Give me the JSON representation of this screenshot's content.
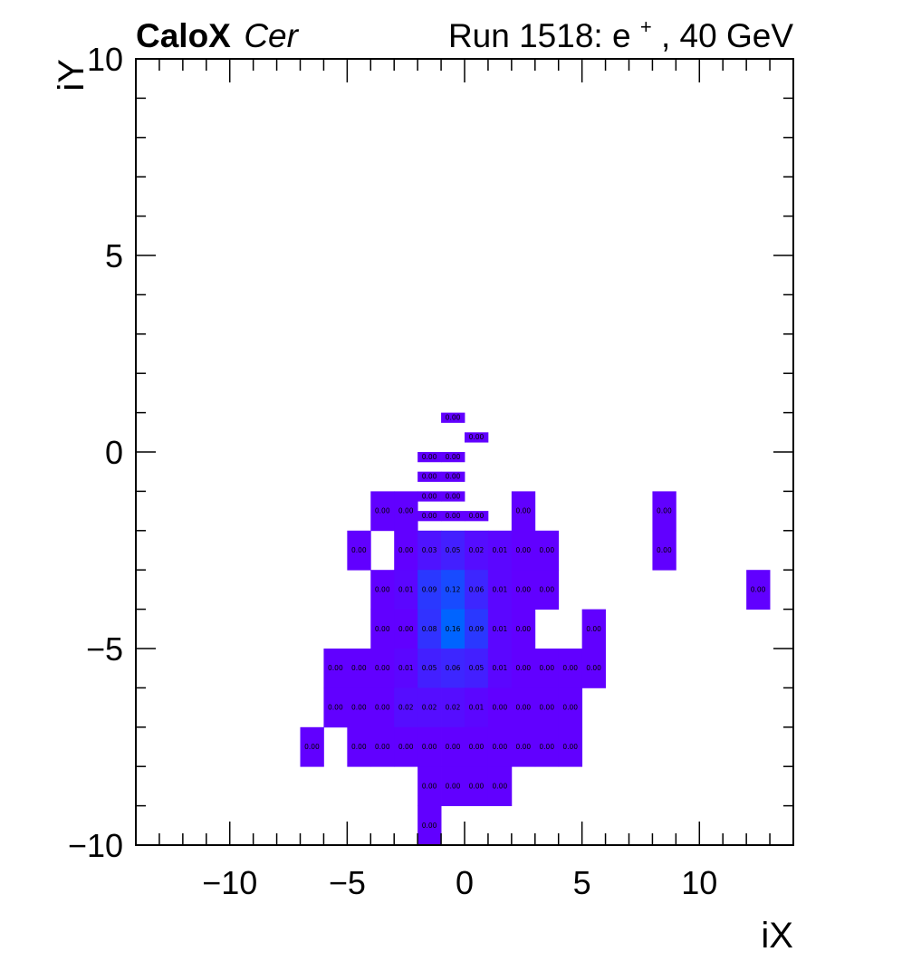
{
  "header": {
    "experiment": "CaloX",
    "channel": "Cer",
    "run_text_pre": "Run 1518: e",
    "run_sup": "+",
    "run_text_post": ", 40 GeV"
  },
  "chart_data": {
    "type": "heatmap",
    "xlabel": "iX",
    "ylabel": "iY",
    "xlim": [
      -14,
      14
    ],
    "ylim": [
      -10,
      10
    ],
    "x_ticks": [
      -10,
      -5,
      0,
      5,
      10
    ],
    "y_ticks": [
      -10,
      -5,
      0,
      5,
      10
    ],
    "x_tick_labels": [
      "−10",
      "−5",
      "0",
      "5",
      "10"
    ],
    "y_tick_labels": [
      "−10",
      "−5",
      "0",
      "5",
      "10"
    ],
    "grid": false,
    "legend": "none",
    "color_low": "#6100ff",
    "color_high": "#0064ff",
    "cells": [
      {
        "x": -1,
        "y": 0.75,
        "w": 1,
        "h": 0.25,
        "label": "0.00",
        "value": 0.0
      },
      {
        "x": 0,
        "y": 0.25,
        "w": 1,
        "h": 0.25,
        "label": "0.00",
        "value": 0.0
      },
      {
        "x": -2,
        "y": -0.25,
        "w": 1,
        "h": 0.25,
        "label": "0.00",
        "value": 0.0
      },
      {
        "x": -1,
        "y": -0.25,
        "w": 1,
        "h": 0.25,
        "label": "0.00",
        "value": 0.0
      },
      {
        "x": -2,
        "y": -0.75,
        "w": 1,
        "h": 0.25,
        "label": "0.00",
        "value": 0.0
      },
      {
        "x": -1,
        "y": -0.75,
        "w": 1,
        "h": 0.25,
        "label": "0.00",
        "value": 0.0
      },
      {
        "x": -2,
        "y": -1.25,
        "w": 1,
        "h": 0.25,
        "label": "0.00",
        "value": 0.0
      },
      {
        "x": -1,
        "y": -1.25,
        "w": 1,
        "h": 0.25,
        "label": "0.00",
        "value": 0.0
      },
      {
        "x": -2,
        "y": -1.75,
        "w": 1,
        "h": 0.25,
        "label": "0.00",
        "value": 0.0
      },
      {
        "x": -1,
        "y": -1.75,
        "w": 1,
        "h": 0.25,
        "label": "0.00",
        "value": 0.0
      },
      {
        "x": 0,
        "y": -1.75,
        "w": 1,
        "h": 0.25,
        "label": "0.00",
        "value": 0.0
      },
      {
        "x": -4,
        "y": -2,
        "w": 1,
        "h": 1,
        "label": "0.00",
        "value": 0.0
      },
      {
        "x": -3,
        "y": -2,
        "w": 1,
        "h": 1,
        "label": "0.00",
        "value": 0.0
      },
      {
        "x": 2,
        "y": -2,
        "w": 1,
        "h": 1,
        "label": "0.00",
        "value": 0.0
      },
      {
        "x": 8,
        "y": -2,
        "w": 1,
        "h": 1,
        "label": "0.00",
        "value": 0.0
      },
      {
        "x": -5,
        "y": -3,
        "w": 1,
        "h": 1,
        "label": "0.00",
        "value": 0.0
      },
      {
        "x": -3,
        "y": -3,
        "w": 1,
        "h": 1,
        "label": "0.00",
        "value": 0.0
      },
      {
        "x": -2,
        "y": -3,
        "w": 1,
        "h": 1,
        "label": "0.03",
        "value": 0.03
      },
      {
        "x": -1,
        "y": -3,
        "w": 1,
        "h": 1,
        "label": "0.05",
        "value": 0.05
      },
      {
        "x": 0,
        "y": -3,
        "w": 1,
        "h": 1,
        "label": "0.02",
        "value": 0.02
      },
      {
        "x": 1,
        "y": -3,
        "w": 1,
        "h": 1,
        "label": "0.01",
        "value": 0.01
      },
      {
        "x": 2,
        "y": -3,
        "w": 1,
        "h": 1,
        "label": "0.00",
        "value": 0.0
      },
      {
        "x": 3,
        "y": -3,
        "w": 1,
        "h": 1,
        "label": "0.00",
        "value": 0.0
      },
      {
        "x": 8,
        "y": -3,
        "w": 1,
        "h": 1,
        "label": "0.00",
        "value": 0.0
      },
      {
        "x": -4,
        "y": -4,
        "w": 1,
        "h": 1,
        "label": "0.00",
        "value": 0.0
      },
      {
        "x": -3,
        "y": -4,
        "w": 1,
        "h": 1,
        "label": "0.01",
        "value": 0.01
      },
      {
        "x": -2,
        "y": -4,
        "w": 1,
        "h": 1,
        "label": "0.09",
        "value": 0.09
      },
      {
        "x": -1,
        "y": -4,
        "w": 1,
        "h": 1,
        "label": "0.12",
        "value": 0.12
      },
      {
        "x": 0,
        "y": -4,
        "w": 1,
        "h": 1,
        "label": "0.06",
        "value": 0.06
      },
      {
        "x": 1,
        "y": -4,
        "w": 1,
        "h": 1,
        "label": "0.01",
        "value": 0.01
      },
      {
        "x": 2,
        "y": -4,
        "w": 1,
        "h": 1,
        "label": "0.00",
        "value": 0.0
      },
      {
        "x": 3,
        "y": -4,
        "w": 1,
        "h": 1,
        "label": "0.00",
        "value": 0.0
      },
      {
        "x": 12,
        "y": -4,
        "w": 1,
        "h": 1,
        "label": "0.00",
        "value": 0.0
      },
      {
        "x": -4,
        "y": -5,
        "w": 1,
        "h": 1,
        "label": "0.00",
        "value": 0.0
      },
      {
        "x": -3,
        "y": -5,
        "w": 1,
        "h": 1,
        "label": "0.00",
        "value": 0.0
      },
      {
        "x": -2,
        "y": -5,
        "w": 1,
        "h": 1,
        "label": "0.08",
        "value": 0.08
      },
      {
        "x": -1,
        "y": -5,
        "w": 1,
        "h": 1,
        "label": "0.16",
        "value": 0.16
      },
      {
        "x": 0,
        "y": -5,
        "w": 1,
        "h": 1,
        "label": "0.09",
        "value": 0.09
      },
      {
        "x": 1,
        "y": -5,
        "w": 1,
        "h": 1,
        "label": "0.01",
        "value": 0.01
      },
      {
        "x": 2,
        "y": -5,
        "w": 1,
        "h": 1,
        "label": "0.00",
        "value": 0.0
      },
      {
        "x": 5,
        "y": -5,
        "w": 1,
        "h": 1,
        "label": "0.00",
        "value": 0.0
      },
      {
        "x": -6,
        "y": -6,
        "w": 1,
        "h": 1,
        "label": "0.00",
        "value": 0.0
      },
      {
        "x": -5,
        "y": -6,
        "w": 1,
        "h": 1,
        "label": "0.00",
        "value": 0.0
      },
      {
        "x": -4,
        "y": -6,
        "w": 1,
        "h": 1,
        "label": "0.00",
        "value": 0.0
      },
      {
        "x": -3,
        "y": -6,
        "w": 1,
        "h": 1,
        "label": "0.01",
        "value": 0.01
      },
      {
        "x": -2,
        "y": -6,
        "w": 1,
        "h": 1,
        "label": "0.05",
        "value": 0.05
      },
      {
        "x": -1,
        "y": -6,
        "w": 1,
        "h": 1,
        "label": "0.06",
        "value": 0.06
      },
      {
        "x": 0,
        "y": -6,
        "w": 1,
        "h": 1,
        "label": "0.05",
        "value": 0.05
      },
      {
        "x": 1,
        "y": -6,
        "w": 1,
        "h": 1,
        "label": "0.01",
        "value": 0.01
      },
      {
        "x": 2,
        "y": -6,
        "w": 1,
        "h": 1,
        "label": "0.00",
        "value": 0.0
      },
      {
        "x": 3,
        "y": -6,
        "w": 1,
        "h": 1,
        "label": "0.00",
        "value": 0.0
      },
      {
        "x": 4,
        "y": -6,
        "w": 1,
        "h": 1,
        "label": "0.00",
        "value": 0.0
      },
      {
        "x": 5,
        "y": -6,
        "w": 1,
        "h": 1,
        "label": "0.00",
        "value": 0.0
      },
      {
        "x": -6,
        "y": -7,
        "w": 1,
        "h": 1,
        "label": "0.00",
        "value": 0.0
      },
      {
        "x": -5,
        "y": -7,
        "w": 1,
        "h": 1,
        "label": "0.00",
        "value": 0.0
      },
      {
        "x": -4,
        "y": -7,
        "w": 1,
        "h": 1,
        "label": "0.00",
        "value": 0.0
      },
      {
        "x": -3,
        "y": -7,
        "w": 1,
        "h": 1,
        "label": "0.02",
        "value": 0.02
      },
      {
        "x": -2,
        "y": -7,
        "w": 1,
        "h": 1,
        "label": "0.02",
        "value": 0.02
      },
      {
        "x": -1,
        "y": -7,
        "w": 1,
        "h": 1,
        "label": "0.02",
        "value": 0.02
      },
      {
        "x": 0,
        "y": -7,
        "w": 1,
        "h": 1,
        "label": "0.01",
        "value": 0.01
      },
      {
        "x": 1,
        "y": -7,
        "w": 1,
        "h": 1,
        "label": "0.00",
        "value": 0.0
      },
      {
        "x": 2,
        "y": -7,
        "w": 1,
        "h": 1,
        "label": "0.00",
        "value": 0.0
      },
      {
        "x": 3,
        "y": -7,
        "w": 1,
        "h": 1,
        "label": "0.00",
        "value": 0.0
      },
      {
        "x": 4,
        "y": -7,
        "w": 1,
        "h": 1,
        "label": "0.00",
        "value": 0.0
      },
      {
        "x": -7,
        "y": -8,
        "w": 1,
        "h": 1,
        "label": "0.00",
        "value": 0.0
      },
      {
        "x": -5,
        "y": -8,
        "w": 1,
        "h": 1,
        "label": "0.00",
        "value": 0.0
      },
      {
        "x": -4,
        "y": -8,
        "w": 1,
        "h": 1,
        "label": "0.00",
        "value": 0.0
      },
      {
        "x": -3,
        "y": -8,
        "w": 1,
        "h": 1,
        "label": "0.00",
        "value": 0.0
      },
      {
        "x": -2,
        "y": -8,
        "w": 1,
        "h": 1,
        "label": "0.00",
        "value": 0.0
      },
      {
        "x": -1,
        "y": -8,
        "w": 1,
        "h": 1,
        "label": "0.00",
        "value": 0.0
      },
      {
        "x": 0,
        "y": -8,
        "w": 1,
        "h": 1,
        "label": "0.00",
        "value": 0.0
      },
      {
        "x": 1,
        "y": -8,
        "w": 1,
        "h": 1,
        "label": "0.00",
        "value": 0.0
      },
      {
        "x": 2,
        "y": -8,
        "w": 1,
        "h": 1,
        "label": "0.00",
        "value": 0.0
      },
      {
        "x": 3,
        "y": -8,
        "w": 1,
        "h": 1,
        "label": "0.00",
        "value": 0.0
      },
      {
        "x": 4,
        "y": -8,
        "w": 1,
        "h": 1,
        "label": "0.00",
        "value": 0.0
      },
      {
        "x": -2,
        "y": -9,
        "w": 1,
        "h": 1,
        "label": "0.00",
        "value": 0.0
      },
      {
        "x": -1,
        "y": -9,
        "w": 1,
        "h": 1,
        "label": "0.00",
        "value": 0.0
      },
      {
        "x": 0,
        "y": -9,
        "w": 1,
        "h": 1,
        "label": "0.00",
        "value": 0.0
      },
      {
        "x": 1,
        "y": -9,
        "w": 1,
        "h": 1,
        "label": "0.00",
        "value": 0.0
      },
      {
        "x": -2,
        "y": -10,
        "w": 1,
        "h": 1,
        "label": "0.00",
        "value": 0.0
      }
    ]
  }
}
